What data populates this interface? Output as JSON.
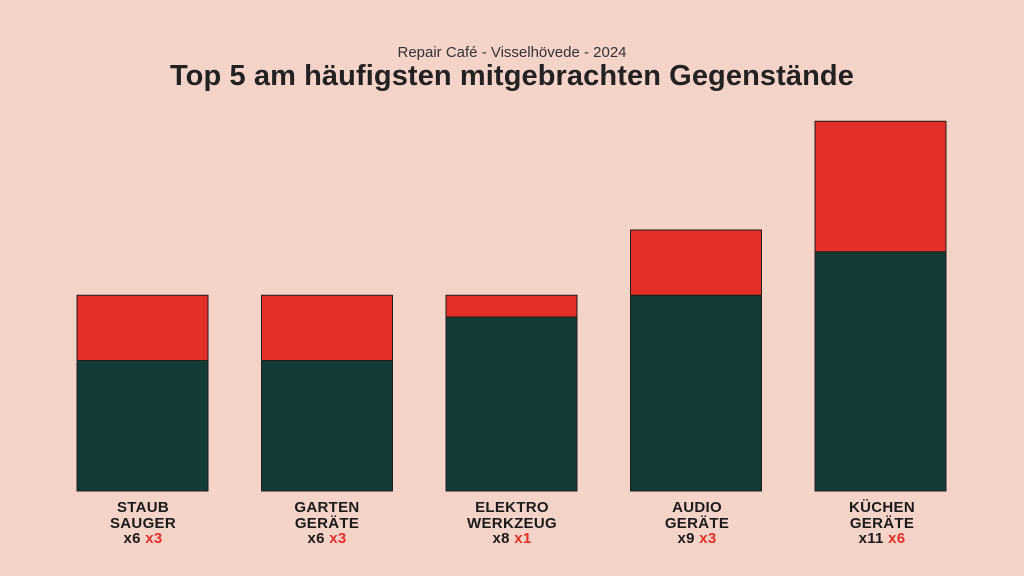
{
  "chart_data": {
    "type": "bar",
    "stacked": true,
    "subtitle": "Repair Café - Visselhövede - 2024",
    "title": "Top 5 am häufigsten mitgebrachten Gegenstände",
    "categories": [
      {
        "lines": [
          "STAUB",
          "SAUGER"
        ],
        "count_a_label": "x6",
        "count_b_label": "x3"
      },
      {
        "lines": [
          "GARTEN",
          "GERÄTE"
        ],
        "count_a_label": "x6",
        "count_b_label": "x3"
      },
      {
        "lines": [
          "ELEKTRO",
          "WERKZEUG"
        ],
        "count_a_label": "x8",
        "count_b_label": "x1"
      },
      {
        "lines": [
          "AUDIO",
          "GERÄTE"
        ],
        "count_a_label": "x9",
        "count_b_label": "x3"
      },
      {
        "lines": [
          "KÜCHEN",
          "GERÄTE"
        ],
        "count_a_label": "x11",
        "count_b_label": "x6"
      }
    ],
    "series": [
      {
        "values": [
          6,
          6,
          8,
          9,
          11
        ],
        "color": "#133a34"
      },
      {
        "values": [
          3,
          3,
          1,
          3,
          6
        ],
        "color": "#e32f28"
      }
    ],
    "ylim": [
      0,
      17
    ],
    "grid": false,
    "legend": "none"
  }
}
